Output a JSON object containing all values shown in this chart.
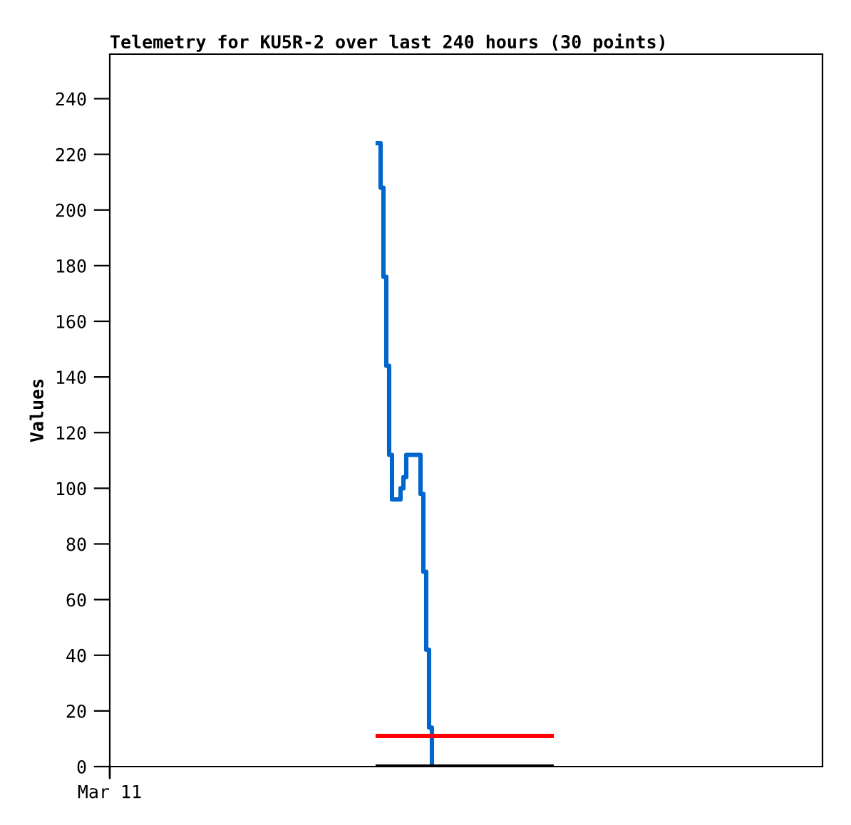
{
  "chart_data": {
    "type": "step",
    "title": "Telemetry for KU5R-2 over last 240 hours (30 points)",
    "ylabel": "Values",
    "annotations": [
      "Mar 11"
    ],
    "categories": [
      null,
      null,
      null,
      null,
      null,
      null,
      null,
      null,
      null,
      null,
      null,
      null,
      null,
      null,
      null,
      null,
      null,
      null,
      null,
      null,
      null,
      null,
      null,
      null,
      null,
      null,
      null,
      null,
      null,
      null,
      null,
      null,
      null,
      null,
      null,
      null,
      null,
      null,
      null,
      null,
      null,
      null,
      null,
      null,
      null,
      null,
      null,
      null,
      null,
      null,
      null,
      null,
      null,
      null,
      null,
      null,
      null,
      null,
      null,
      null,
      null,
      null,
      null,
      null,
      null,
      null,
      null,
      null,
      null,
      null,
      null,
      null,
      null,
      null,
      null,
      null,
      null,
      null,
      null,
      null,
      null,
      null,
      null,
      null,
      null,
      null,
      null,
      null,
      null,
      null,
      null,
      null,
      null,
      null,
      null,
      null,
      null,
      null,
      null,
      null,
      null,
      null,
      null,
      null,
      null,
      null,
      null,
      null,
      null,
      null,
      null,
      null,
      null,
      null,
      null,
      null,
      null,
      null,
      null,
      null,
      null,
      null,
      null,
      null,
      null,
      null,
      null,
      null,
      null,
      null,
      null,
      null,
      null,
      null,
      null,
      null,
      null,
      null,
      null,
      null,
      null,
      null,
      null,
      null,
      null,
      null,
      null,
      null,
      null,
      null,
      null,
      null,
      null,
      null,
      null,
      null,
      null,
      null,
      null,
      null,
      null,
      null,
      null,
      null,
      null,
      null,
      null,
      null,
      null,
      null,
      null,
      null,
      null,
      null,
      null,
      null,
      null,
      null,
      null,
      null,
      null,
      null,
      null,
      null,
      null,
      null,
      null,
      null,
      null,
      null,
      null,
      null,
      null,
      null,
      null,
      null,
      null,
      null,
      null,
      null,
      null,
      null,
      null,
      null,
      null,
      null,
      null,
      null,
      null,
      null,
      null,
      null,
      null,
      null,
      null,
      null,
      null,
      null,
      null,
      null,
      null,
      null,
      null,
      null,
      null,
      null,
      null,
      null,
      null,
      null,
      null,
      null,
      null,
      null,
      null,
      null,
      null,
      null,
      null,
      null,
      null,
      null,
      null,
      null,
      null,
      null,
      null,
      null,
      null,
      null,
      null
    ],
    "ylim": [
      0,
      256
    ],
    "yticks": [
      0,
      20,
      40,
      60,
      80,
      100,
      120,
      140,
      160,
      180,
      200,
      220,
      240
    ],
    "grid": false,
    "legend": false,
    "series": [
      {
        "color": "#0066cc",
        "values": [
          null,
          null,
          null,
          null,
          null,
          null,
          null,
          null,
          null,
          null,
          null,
          null,
          null,
          null,
          null,
          null,
          null,
          null,
          null,
          null,
          null,
          null,
          null,
          null,
          null,
          null,
          null,
          null,
          null,
          null,
          null,
          null,
          null,
          null,
          null,
          null,
          null,
          null,
          null,
          null,
          null,
          null,
          null,
          null,
          null,
          null,
          null,
          null,
          null,
          null,
          null,
          null,
          null,
          null,
          null,
          null,
          null,
          null,
          null,
          null,
          null,
          null,
          null,
          null,
          null,
          null,
          null,
          null,
          null,
          null,
          null,
          null,
          null,
          null,
          null,
          null,
          null,
          null,
          null,
          null,
          null,
          null,
          null,
          null,
          null,
          null,
          null,
          null,
          null,
          null,
          null,
          null,
          null,
          null,
          224,
          208,
          176,
          144,
          112,
          96,
          96,
          96,
          100,
          104,
          112,
          112,
          112,
          112,
          112,
          98,
          70,
          42,
          14,
          0,
          null,
          null,
          null,
          null,
          null,
          null,
          null,
          null,
          null,
          null,
          null,
          null,
          null,
          null,
          null,
          null,
          null,
          null,
          null,
          null,
          null,
          null,
          null,
          null,
          null,
          null,
          null,
          null,
          null,
          null,
          null,
          null,
          null,
          null,
          null,
          null,
          null,
          null,
          null,
          null,
          null,
          null,
          null,
          null,
          null,
          null,
          null,
          null,
          null,
          null,
          null,
          null,
          null,
          null,
          null,
          null,
          null,
          null,
          null,
          null,
          null,
          null,
          null,
          null,
          null,
          null,
          null,
          null,
          null,
          null,
          null,
          null,
          null,
          null,
          null,
          null,
          null,
          null,
          null,
          null,
          null,
          null,
          null,
          null,
          null,
          null,
          null,
          null,
          null,
          null,
          null,
          null,
          null,
          null,
          null,
          null,
          null,
          null,
          null,
          null,
          null,
          null,
          null,
          null,
          null,
          null,
          null,
          null,
          null,
          null,
          null,
          null,
          null,
          null,
          null,
          null,
          null,
          null,
          null,
          null,
          null,
          null,
          null,
          null,
          null,
          null,
          null,
          null,
          null,
          null,
          null,
          null,
          null,
          null,
          null,
          null,
          null
        ]
      },
      {
        "type": "line",
        "color": "#ff0000",
        "values": [
          null,
          null,
          null,
          null,
          null,
          null,
          null,
          null,
          null,
          null,
          null,
          null,
          null,
          null,
          null,
          null,
          null,
          null,
          null,
          null,
          null,
          null,
          null,
          null,
          null,
          null,
          null,
          null,
          null,
          null,
          null,
          null,
          null,
          null,
          null,
          null,
          null,
          null,
          null,
          null,
          null,
          null,
          null,
          null,
          null,
          null,
          null,
          null,
          null,
          null,
          null,
          null,
          null,
          null,
          null,
          null,
          null,
          null,
          null,
          null,
          null,
          null,
          null,
          null,
          null,
          null,
          null,
          null,
          null,
          null,
          null,
          null,
          null,
          null,
          null,
          null,
          null,
          null,
          null,
          null,
          null,
          null,
          null,
          null,
          null,
          null,
          null,
          null,
          null,
          null,
          null,
          null,
          null,
          null,
          11,
          11,
          11,
          11,
          11,
          11,
          11,
          11,
          11,
          11,
          11,
          11,
          11,
          11,
          11,
          11,
          11,
          11,
          11,
          11,
          11,
          11,
          11,
          11,
          11,
          11,
          11,
          11,
          11,
          11,
          11,
          11,
          11,
          11,
          11,
          11,
          11,
          11,
          11,
          11,
          11,
          11,
          11,
          11,
          11,
          11,
          11,
          11,
          11,
          11,
          11,
          11,
          11,
          11,
          11,
          11,
          11,
          11,
          11,
          11,
          11,
          11,
          null,
          null,
          null,
          null,
          null,
          null,
          null,
          null,
          null,
          null,
          null,
          null,
          null,
          null,
          null,
          null,
          null,
          null,
          null,
          null,
          null,
          null,
          null,
          null,
          null,
          null,
          null,
          null,
          null,
          null,
          null,
          null,
          null,
          null,
          null,
          null,
          null,
          null,
          null,
          null,
          null,
          null,
          null,
          null,
          null,
          null,
          null,
          null,
          null,
          null,
          null,
          null,
          null,
          null,
          null,
          null,
          null,
          null,
          null,
          null,
          null,
          null,
          null,
          null,
          null,
          null,
          null,
          null,
          null,
          null,
          null,
          null,
          null,
          null,
          null,
          null,
          null,
          null,
          null,
          null,
          null,
          null,
          null,
          null,
          null,
          null,
          null,
          null,
          null,
          null,
          null,
          null,
          null,
          null,
          null
        ]
      },
      {
        "type": "line",
        "color": "#000000",
        "values": [
          null,
          null,
          null,
          null,
          null,
          null,
          null,
          null,
          null,
          null,
          null,
          null,
          null,
          null,
          null,
          null,
          null,
          null,
          null,
          null,
          null,
          null,
          null,
          null,
          null,
          null,
          null,
          null,
          null,
          null,
          null,
          null,
          null,
          null,
          null,
          null,
          null,
          null,
          null,
          null,
          null,
          null,
          null,
          null,
          null,
          null,
          null,
          null,
          null,
          null,
          null,
          null,
          null,
          null,
          null,
          null,
          null,
          null,
          null,
          null,
          null,
          null,
          null,
          null,
          null,
          null,
          null,
          null,
          null,
          null,
          null,
          null,
          null,
          null,
          null,
          null,
          null,
          null,
          null,
          null,
          null,
          null,
          null,
          null,
          null,
          null,
          null,
          null,
          null,
          null,
          null,
          null,
          null,
          null,
          0,
          0,
          0,
          0,
          0,
          0,
          0,
          0,
          0,
          0,
          0,
          0,
          0,
          0,
          0,
          0,
          0,
          0,
          0,
          0,
          0,
          0,
          0,
          0,
          0,
          0,
          0,
          0,
          0,
          0,
          0,
          0,
          0,
          0,
          0,
          0,
          0,
          0,
          0,
          0,
          0,
          0,
          0,
          0,
          0,
          0,
          0,
          0,
          0,
          0,
          0,
          0,
          0,
          0,
          0,
          0,
          0,
          0,
          0,
          0,
          0,
          0,
          null,
          null,
          null,
          null,
          null,
          null,
          null,
          null,
          null,
          null,
          null,
          null,
          null,
          null,
          null,
          null,
          null,
          null,
          null,
          null,
          null,
          null,
          null,
          null,
          null,
          null,
          null,
          null,
          null,
          null,
          null,
          null,
          null,
          null,
          null,
          null,
          null,
          null,
          null,
          null,
          null,
          null,
          null,
          null,
          null,
          null,
          null,
          null,
          null,
          null,
          null,
          null,
          null,
          null,
          null,
          null,
          null,
          null,
          null,
          null,
          null,
          null,
          null,
          null,
          null,
          null,
          null,
          null,
          null,
          null,
          null,
          null,
          null,
          null,
          null,
          null,
          null,
          null,
          null,
          null,
          null,
          null,
          null,
          null,
          null,
          null,
          null,
          null,
          null,
          null,
          null,
          null,
          null,
          null,
          null
        ]
      }
    ]
  }
}
